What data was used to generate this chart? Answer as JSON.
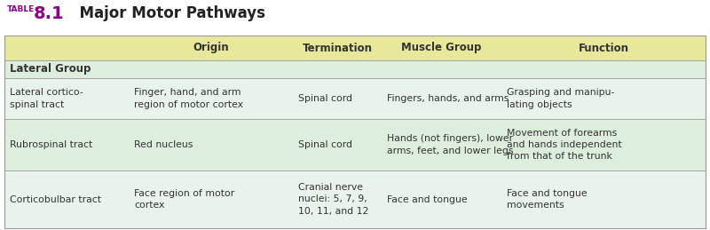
{
  "title_prefix": "TABLE",
  "title_number": "8.1",
  "title_text": "  Major Motor Pathways",
  "header_bg": "#e8e89a",
  "lateral_group_bg": "#ddeedd",
  "row1_bg": "#eaf3ea",
  "row2_bg": "#ddeedd",
  "row3_bg": "#eaf3ea",
  "outer_bg": "#ffffff",
  "text_color": "#333333",
  "columns": [
    "",
    "Origin",
    "Termination",
    "Muscle Group",
    "Function"
  ],
  "title_prefix_color": "#8B008B",
  "title_number_color": "#8B008B",
  "title_text_color": "#222222",
  "border_color": "#999999",
  "font_size": 7.8,
  "header_font_size": 8.5,
  "title_prefix_fontsize": 6.5,
  "title_number_fontsize": 14,
  "title_text_fontsize": 12,
  "group_font_size": 8.5,
  "rows": [
    {
      "type": "group_header",
      "label": "Lateral Group"
    },
    {
      "type": "data",
      "cells": [
        "Lateral cortico-\nspinal tract",
        "Finger, hand, and arm\nregion of motor cortex",
        "Spinal cord",
        "Fingers, hands, and arms",
        "Grasping and manipu-\nlating objects"
      ]
    },
    {
      "type": "data",
      "cells": [
        "Rubrospinal tract",
        "Red nucleus",
        "Spinal cord",
        "Hands (not fingers), lower\narms, feet, and lower legs",
        "Movement of forearms\nand hands independent\nfrom that of the trunk"
      ]
    },
    {
      "type": "data",
      "cells": [
        "Corticobulbar tract",
        "Face region of motor\ncortex",
        "Cranial nerve\nnuclei: 5, 7, 9,\n10, 11, and 12",
        "Face and tongue",
        "Face and tongue\nmovements"
      ]
    }
  ]
}
